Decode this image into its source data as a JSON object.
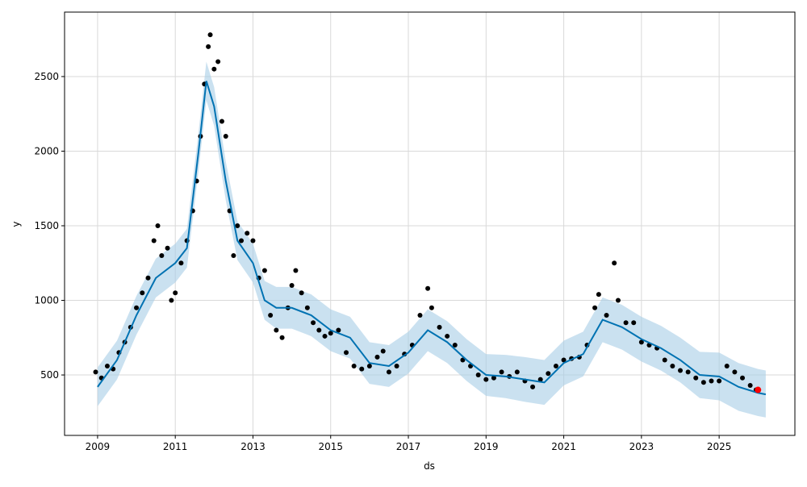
{
  "chart_data": {
    "type": "line",
    "xlabel": "ds",
    "ylabel": "y",
    "grid": true,
    "xlim": [
      2008.15,
      2026.95
    ],
    "ylim": [
      95,
      2932
    ],
    "xticks": [
      2009,
      2011,
      2013,
      2015,
      2017,
      2019,
      2021,
      2023,
      2025
    ],
    "yticks": [
      500,
      1000,
      1500,
      2000,
      2500
    ],
    "forecast": {
      "color": "#0072b2",
      "band_color": "#a6cde6",
      "x": [
        2009.0,
        2009.5,
        2010.0,
        2010.5,
        2011.0,
        2011.3,
        2011.6,
        2011.8,
        2012.0,
        2012.3,
        2012.6,
        2013.0,
        2013.3,
        2013.6,
        2014.0,
        2014.5,
        2015.0,
        2015.5,
        2016.0,
        2016.5,
        2017.0,
        2017.5,
        2018.0,
        2018.5,
        2019.0,
        2019.5,
        2020.0,
        2020.5,
        2021.0,
        2021.5,
        2022.0,
        2022.5,
        2023.0,
        2023.5,
        2024.0,
        2024.5,
        2025.0,
        2025.5,
        2026.0,
        2026.2
      ],
      "values": [
        420,
        600,
        900,
        1150,
        1250,
        1350,
        2000,
        2470,
        2300,
        1800,
        1400,
        1250,
        1000,
        950,
        950,
        900,
        800,
        750,
        580,
        560,
        650,
        800,
        720,
        600,
        500,
        490,
        470,
        450,
        580,
        640,
        870,
        820,
        740,
        680,
        600,
        500,
        490,
        420,
        380,
        370
      ],
      "lower": [
        290,
        470,
        770,
        1020,
        1120,
        1220,
        1870,
        2340,
        2170,
        1670,
        1270,
        1120,
        870,
        810,
        810,
        760,
        660,
        610,
        440,
        420,
        510,
        660,
        580,
        460,
        360,
        345,
        320,
        300,
        430,
        490,
        720,
        670,
        590,
        530,
        450,
        345,
        330,
        260,
        225,
        215
      ],
      "upper": [
        550,
        730,
        1030,
        1280,
        1380,
        1480,
        2130,
        2600,
        2430,
        1930,
        1530,
        1380,
        1130,
        1090,
        1090,
        1040,
        940,
        890,
        720,
        700,
        790,
        940,
        860,
        740,
        640,
        635,
        620,
        600,
        730,
        790,
        1020,
        970,
        890,
        830,
        750,
        655,
        650,
        580,
        540,
        530
      ]
    },
    "points": {
      "color": "#000000",
      "x": [
        2008.95,
        2009.1,
        2009.25,
        2009.4,
        2009.55,
        2009.7,
        2009.85,
        2010.0,
        2010.15,
        2010.3,
        2010.45,
        2010.55,
        2010.65,
        2010.8,
        2010.9,
        2011.0,
        2011.15,
        2011.3,
        2011.45,
        2011.55,
        2011.65,
        2011.75,
        2011.85,
        2011.9,
        2012.0,
        2012.1,
        2012.2,
        2012.3,
        2012.4,
        2012.5,
        2012.6,
        2012.7,
        2012.85,
        2013.0,
        2013.15,
        2013.3,
        2013.45,
        2013.6,
        2013.75,
        2013.9,
        2014.0,
        2014.1,
        2014.25,
        2014.4,
        2014.55,
        2014.7,
        2014.85,
        2015.0,
        2015.2,
        2015.4,
        2015.6,
        2015.8,
        2016.0,
        2016.2,
        2016.35,
        2016.5,
        2016.7,
        2016.9,
        2017.1,
        2017.3,
        2017.5,
        2017.6,
        2017.8,
        2018.0,
        2018.2,
        2018.4,
        2018.6,
        2018.8,
        2019.0,
        2019.2,
        2019.4,
        2019.6,
        2019.8,
        2020.0,
        2020.2,
        2020.4,
        2020.6,
        2020.8,
        2021.0,
        2021.2,
        2021.4,
        2021.6,
        2021.8,
        2021.9,
        2022.1,
        2022.3,
        2022.4,
        2022.6,
        2022.8,
        2023.0,
        2023.2,
        2023.4,
        2023.6,
        2023.8,
        2024.0,
        2024.2,
        2024.4,
        2024.6,
        2024.8,
        2025.0,
        2025.2,
        2025.4,
        2025.6,
        2025.8,
        2025.95
      ],
      "values": [
        520,
        480,
        560,
        540,
        650,
        720,
        820,
        950,
        1050,
        1150,
        1400,
        1500,
        1300,
        1350,
        1000,
        1050,
        1250,
        1400,
        1600,
        1800,
        2100,
        2450,
        2700,
        2780,
        2550,
        2600,
        2200,
        2100,
        1600,
        1300,
        1500,
        1400,
        1450,
        1400,
        1150,
        1200,
        900,
        800,
        750,
        950,
        1100,
        1200,
        1050,
        950,
        850,
        800,
        760,
        780,
        800,
        650,
        560,
        540,
        560,
        620,
        660,
        520,
        560,
        640,
        700,
        900,
        1080,
        950,
        820,
        760,
        700,
        600,
        560,
        500,
        470,
        480,
        520,
        490,
        520,
        460,
        420,
        470,
        510,
        560,
        600,
        610,
        620,
        700,
        950,
        1040,
        900,
        1250,
        1000,
        850,
        850,
        720,
        700,
        680,
        600,
        560,
        530,
        520,
        480,
        450,
        460,
        460,
        560,
        520,
        480,
        430,
        400
      ]
    },
    "highlight": {
      "color": "#ff0000",
      "x": [
        2026.0
      ],
      "values": [
        400
      ]
    }
  }
}
